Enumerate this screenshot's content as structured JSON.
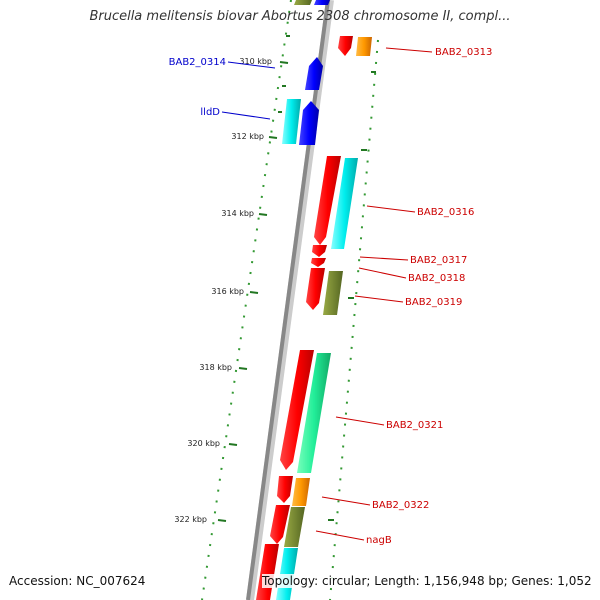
{
  "title": "Brucella melitensis biovar Abortus 2308 chromosome II, compl...",
  "footer": {
    "accession": "Accession: NC_007624",
    "summary": "Topology: circular; Length: 1,156,948 bp; Genes: 1,052"
  },
  "colors": {
    "forward_label": "#0000cc",
    "reverse_label": "#cc0000",
    "backbone": "#888888",
    "tick": "#227722"
  },
  "ticks": [
    "310 kbp",
    "312 kbp",
    "314 kbp",
    "316 kbp",
    "318 kbp",
    "320 kbp",
    "322 kbp"
  ],
  "forward_labels": [
    "BAB2_0314",
    "lldD"
  ],
  "reverse_labels": [
    "BAB2_0313",
    "BAB2_0316",
    "BAB2_0317",
    "BAB2_0318",
    "BAB2_0319",
    "BAB2_0321",
    "BAB2_0322",
    "nagB"
  ]
}
